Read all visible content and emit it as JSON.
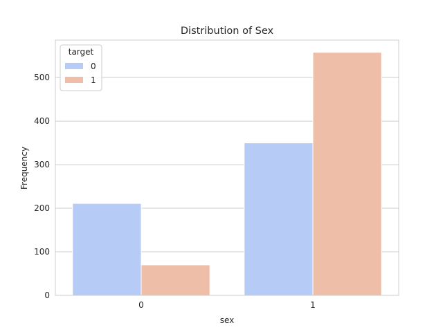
{
  "chart_data": {
    "type": "bar",
    "title": "Distribution of Sex",
    "xlabel": "sex",
    "ylabel": "Frequency",
    "categories": [
      "0",
      "1"
    ],
    "series": [
      {
        "name": "0",
        "values": [
          211,
          350
        ],
        "color": "#b6cbf6"
      },
      {
        "name": "1",
        "values": [
          70,
          558
        ],
        "color": "#eebea8"
      }
    ],
    "ylim": [
      0,
      586
    ],
    "yticks": [
      0,
      100,
      200,
      300,
      400,
      500
    ],
    "grid": "horizontal",
    "legend": {
      "title": "target",
      "placement": "top-left"
    }
  }
}
